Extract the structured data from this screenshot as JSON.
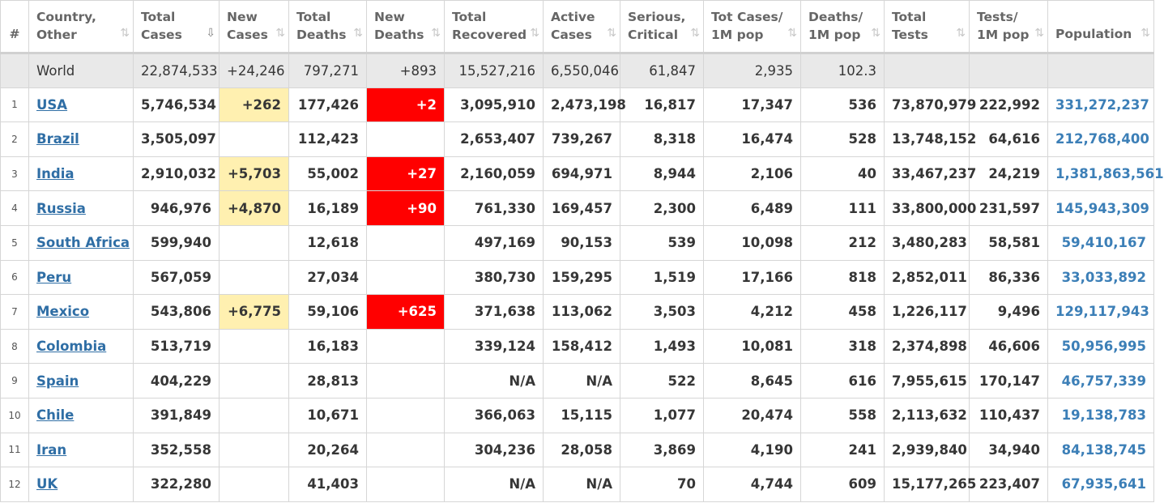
{
  "columns": [
    {
      "label_1": "#",
      "label_2": ""
    },
    {
      "label_1": "Country,",
      "label_2": "Other"
    },
    {
      "label_1": "Total",
      "label_2": "Cases"
    },
    {
      "label_1": "New",
      "label_2": "Cases"
    },
    {
      "label_1": "Total",
      "label_2": "Deaths"
    },
    {
      "label_1": "New",
      "label_2": "Deaths"
    },
    {
      "label_1": "Total",
      "label_2": "Recovered"
    },
    {
      "label_1": "Active",
      "label_2": "Cases"
    },
    {
      "label_1": "Serious,",
      "label_2": "Critical"
    },
    {
      "label_1": "Tot Cases/",
      "label_2": "1M pop"
    },
    {
      "label_1": "Deaths/",
      "label_2": "1M pop"
    },
    {
      "label_1": "Total",
      "label_2": "Tests"
    },
    {
      "label_1": "Tests/",
      "label_2": "1M pop"
    },
    {
      "label_1": "Population",
      "label_2": ""
    }
  ],
  "sort_icon": "⇅",
  "sort_icon_active": "⇩",
  "world": {
    "country": "World",
    "total_cases": "22,874,533",
    "new_cases": "+24,246",
    "total_deaths": "797,271",
    "new_deaths": "+893",
    "total_recovered": "15,527,216",
    "active_cases": "6,550,046",
    "serious": "61,847",
    "cases_per_1m": "2,935",
    "deaths_per_1m": "102.3",
    "total_tests": "",
    "tests_per_1m": "",
    "population": ""
  },
  "rows": [
    {
      "idx": "1",
      "country": "USA",
      "total_cases": "5,746,534",
      "new_cases": "+262",
      "total_deaths": "177,426",
      "new_deaths": "+2",
      "total_recovered": "3,095,910",
      "active_cases": "2,473,198",
      "serious": "16,817",
      "cases_per_1m": "17,347",
      "deaths_per_1m": "536",
      "total_tests": "73,870,979",
      "tests_per_1m": "222,992",
      "population": "331,272,237"
    },
    {
      "idx": "2",
      "country": "Brazil",
      "total_cases": "3,505,097",
      "new_cases": "",
      "total_deaths": "112,423",
      "new_deaths": "",
      "total_recovered": "2,653,407",
      "active_cases": "739,267",
      "serious": "8,318",
      "cases_per_1m": "16,474",
      "deaths_per_1m": "528",
      "total_tests": "13,748,152",
      "tests_per_1m": "64,616",
      "population": "212,768,400"
    },
    {
      "idx": "3",
      "country": "India",
      "total_cases": "2,910,032",
      "new_cases": "+5,703",
      "total_deaths": "55,002",
      "new_deaths": "+27",
      "total_recovered": "2,160,059",
      "active_cases": "694,971",
      "serious": "8,944",
      "cases_per_1m": "2,106",
      "deaths_per_1m": "40",
      "total_tests": "33,467,237",
      "tests_per_1m": "24,219",
      "population": "1,381,863,561"
    },
    {
      "idx": "4",
      "country": "Russia",
      "total_cases": "946,976",
      "new_cases": "+4,870",
      "total_deaths": "16,189",
      "new_deaths": "+90",
      "total_recovered": "761,330",
      "active_cases": "169,457",
      "serious": "2,300",
      "cases_per_1m": "6,489",
      "deaths_per_1m": "111",
      "total_tests": "33,800,000",
      "tests_per_1m": "231,597",
      "population": "145,943,309"
    },
    {
      "idx": "5",
      "country": "South Africa",
      "total_cases": "599,940",
      "new_cases": "",
      "total_deaths": "12,618",
      "new_deaths": "",
      "total_recovered": "497,169",
      "active_cases": "90,153",
      "serious": "539",
      "cases_per_1m": "10,098",
      "deaths_per_1m": "212",
      "total_tests": "3,480,283",
      "tests_per_1m": "58,581",
      "population": "59,410,167"
    },
    {
      "idx": "6",
      "country": "Peru",
      "total_cases": "567,059",
      "new_cases": "",
      "total_deaths": "27,034",
      "new_deaths": "",
      "total_recovered": "380,730",
      "active_cases": "159,295",
      "serious": "1,519",
      "cases_per_1m": "17,166",
      "deaths_per_1m": "818",
      "total_tests": "2,852,011",
      "tests_per_1m": "86,336",
      "population": "33,033,892"
    },
    {
      "idx": "7",
      "country": "Mexico",
      "total_cases": "543,806",
      "new_cases": "+6,775",
      "total_deaths": "59,106",
      "new_deaths": "+625",
      "total_recovered": "371,638",
      "active_cases": "113,062",
      "serious": "3,503",
      "cases_per_1m": "4,212",
      "deaths_per_1m": "458",
      "total_tests": "1,226,117",
      "tests_per_1m": "9,496",
      "population": "129,117,943"
    },
    {
      "idx": "8",
      "country": "Colombia",
      "total_cases": "513,719",
      "new_cases": "",
      "total_deaths": "16,183",
      "new_deaths": "",
      "total_recovered": "339,124",
      "active_cases": "158,412",
      "serious": "1,493",
      "cases_per_1m": "10,081",
      "deaths_per_1m": "318",
      "total_tests": "2,374,898",
      "tests_per_1m": "46,606",
      "population": "50,956,995"
    },
    {
      "idx": "9",
      "country": "Spain",
      "total_cases": "404,229",
      "new_cases": "",
      "total_deaths": "28,813",
      "new_deaths": "",
      "total_recovered": "N/A",
      "active_cases": "N/A",
      "serious": "522",
      "cases_per_1m": "8,645",
      "deaths_per_1m": "616",
      "total_tests": "7,955,615",
      "tests_per_1m": "170,147",
      "population": "46,757,339"
    },
    {
      "idx": "10",
      "country": "Chile",
      "total_cases": "391,849",
      "new_cases": "",
      "total_deaths": "10,671",
      "new_deaths": "",
      "total_recovered": "366,063",
      "active_cases": "15,115",
      "serious": "1,077",
      "cases_per_1m": "20,474",
      "deaths_per_1m": "558",
      "total_tests": "2,113,632",
      "tests_per_1m": "110,437",
      "population": "19,138,783"
    },
    {
      "idx": "11",
      "country": "Iran",
      "total_cases": "352,558",
      "new_cases": "",
      "total_deaths": "20,264",
      "new_deaths": "",
      "total_recovered": "304,236",
      "active_cases": "28,058",
      "serious": "3,869",
      "cases_per_1m": "4,190",
      "deaths_per_1m": "241",
      "total_tests": "2,939,840",
      "tests_per_1m": "34,940",
      "population": "84,138,745"
    },
    {
      "idx": "12",
      "country": "UK",
      "total_cases": "322,280",
      "new_cases": "",
      "total_deaths": "41,403",
      "new_deaths": "",
      "total_recovered": "N/A",
      "active_cases": "N/A",
      "serious": "70",
      "cases_per_1m": "4,744",
      "deaths_per_1m": "609",
      "total_tests": "15,177,265",
      "tests_per_1m": "223,407",
      "population": "67,935,641"
    }
  ]
}
